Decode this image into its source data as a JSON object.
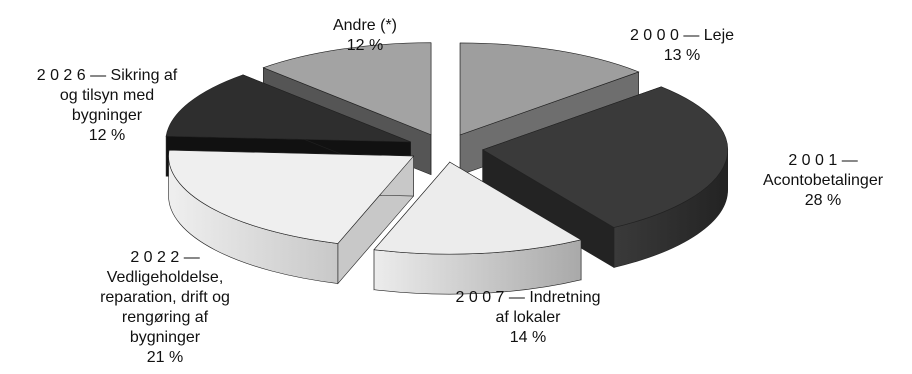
{
  "chart_data": {
    "type": "pie",
    "style": "3d-exploded",
    "slices": [
      {
        "label_lines": [
          "2 0 0 0 — Leje"
        ],
        "percent_label": "13 %",
        "value": 13,
        "top_color": "#9e9e9e",
        "side_color": "#6e6e6e"
      },
      {
        "label_lines": [
          "2 0 0 1 —",
          "Acontobetalinger"
        ],
        "percent_label": "28 %",
        "value": 28,
        "top_color": "#3a3a3a",
        "side_color": "#232323"
      },
      {
        "label_lines": [
          "2 0 0 7 — Indretning",
          "af lokaler"
        ],
        "percent_label": "14 %",
        "value": 14,
        "top_color": "#ececec",
        "side_color": "#a9a9a9"
      },
      {
        "label_lines": [
          "2 0 2 2 —",
          "Vedligeholdelse,",
          "reparation, drift og",
          "rengøring af",
          "bygninger"
        ],
        "percent_label": "21 %",
        "value": 21,
        "top_color": "#efefef",
        "side_color": "#c8c8c8"
      },
      {
        "label_lines": [
          "2 0 2 6 — Sikring af",
          "og tilsyn med",
          "bygninger"
        ],
        "percent_label": "12 %",
        "value": 12,
        "top_color": "#2e2e2e",
        "side_color": "#111111"
      },
      {
        "label_lines": [
          "Andre (*)"
        ],
        "percent_label": "12 %",
        "value": 12,
        "top_color": "#a3a3a3",
        "side_color": "#555555"
      }
    ]
  }
}
